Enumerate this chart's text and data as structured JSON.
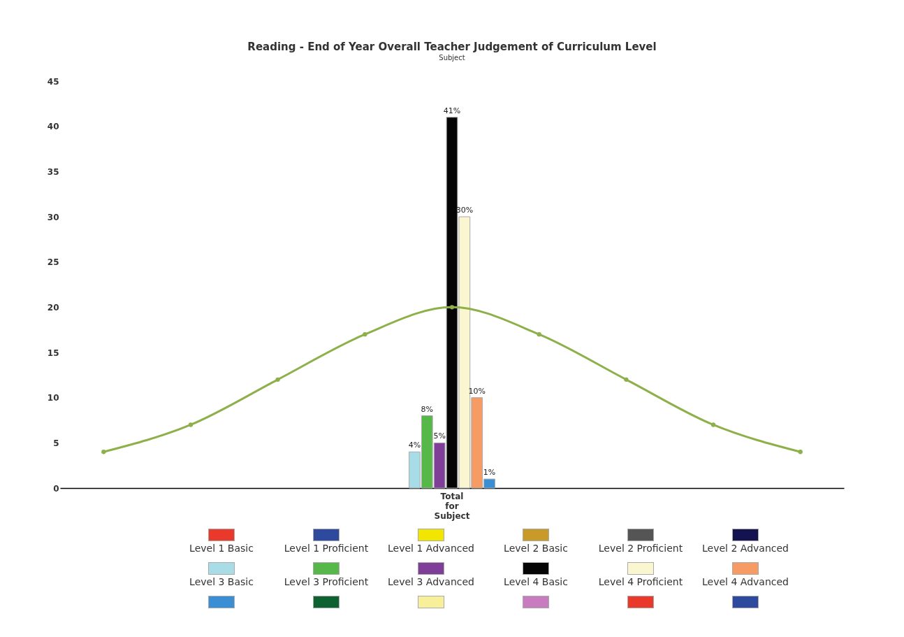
{
  "chart_data": {
    "type": "bar",
    "title": "Reading - End of Year Overall Teacher Judgement of Curriculum Level",
    "subtitle": "Subject",
    "categories": [
      null,
      null,
      null,
      null,
      "Total for Subject",
      null,
      null,
      null,
      null
    ],
    "ylim": [
      0,
      45
    ],
    "yticks": [
      0,
      5,
      10,
      15,
      20,
      25,
      30,
      35,
      40,
      45
    ],
    "grid": false,
    "legend": "bottom",
    "series": [
      {
        "name": "Level 1 Basic",
        "color": "#e8392b",
        "values": [
          null,
          null,
          null,
          null,
          null,
          null,
          null,
          null,
          null
        ]
      },
      {
        "name": "Level 1 Proficient",
        "color": "#2e4a9e",
        "values": [
          null,
          null,
          null,
          null,
          null,
          null,
          null,
          null,
          null
        ]
      },
      {
        "name": "Level 1 Advanced",
        "color": "#f2e600",
        "values": [
          null,
          null,
          null,
          null,
          null,
          null,
          null,
          null,
          null
        ]
      },
      {
        "name": "Level 2 Basic",
        "color": "#c9992a",
        "values": [
          null,
          null,
          null,
          null,
          null,
          null,
          null,
          null,
          null
        ]
      },
      {
        "name": "Level 2 Proficient",
        "color": "#555555",
        "values": [
          null,
          null,
          null,
          null,
          null,
          null,
          null,
          null,
          null
        ]
      },
      {
        "name": "Level 2 Advanced",
        "color": "#14134f",
        "values": [
          null,
          null,
          null,
          null,
          null,
          null,
          null,
          null,
          null
        ]
      },
      {
        "name": "Level 3 Basic",
        "color": "#a8dde8",
        "values": [
          null,
          null,
          null,
          null,
          4,
          null,
          null,
          null,
          null
        ],
        "value_labels": [
          null,
          null,
          null,
          null,
          "4%",
          null,
          null,
          null,
          null
        ]
      },
      {
        "name": "Level 3 Proficient",
        "color": "#55b848",
        "values": [
          null,
          null,
          null,
          null,
          8,
          null,
          null,
          null,
          null
        ],
        "value_labels": [
          null,
          null,
          null,
          null,
          "8%",
          null,
          null,
          null,
          null
        ]
      },
      {
        "name": "Level 3 Advanced",
        "color": "#7f3f98",
        "values": [
          null,
          null,
          null,
          null,
          5,
          null,
          null,
          null,
          null
        ],
        "value_labels": [
          null,
          null,
          null,
          null,
          "5%",
          null,
          null,
          null,
          null
        ]
      },
      {
        "name": "Level 4 Basic",
        "color": "#050505",
        "values": [
          null,
          null,
          null,
          null,
          41,
          null,
          null,
          null,
          null
        ],
        "value_labels": [
          null,
          null,
          null,
          null,
          "41%",
          null,
          null,
          null,
          null
        ]
      },
      {
        "name": "Level 4 Proficient",
        "color": "#faf7d0",
        "values": [
          null,
          null,
          null,
          null,
          30,
          null,
          null,
          null,
          null
        ],
        "value_labels": [
          null,
          null,
          null,
          null,
          "30%",
          null,
          null,
          null,
          null
        ]
      },
      {
        "name": "Level 4 Advanced",
        "color": "#f59b63",
        "values": [
          null,
          null,
          null,
          null,
          10,
          null,
          null,
          null,
          null
        ],
        "value_labels": [
          null,
          null,
          null,
          null,
          "10%",
          null,
          null,
          null,
          null
        ]
      },
      {
        "color": "#3a8fd4",
        "values": [
          null,
          null,
          null,
          null,
          1,
          null,
          null,
          null,
          null
        ],
        "value_labels": [
          null,
          null,
          null,
          null,
          "1%",
          null,
          null,
          null,
          null
        ]
      },
      {
        "color": "#0e6232",
        "values": [
          null,
          null,
          null,
          null,
          null,
          null,
          null,
          null,
          null
        ]
      },
      {
        "color": "#f7ef9a",
        "values": [
          null,
          null,
          null,
          null,
          null,
          null,
          null,
          null,
          null
        ]
      },
      {
        "color": "#c97bc0",
        "values": [
          null,
          null,
          null,
          null,
          null,
          null,
          null,
          null,
          null
        ]
      },
      {
        "color": "#e8392b",
        "values": [
          null,
          null,
          null,
          null,
          null,
          null,
          null,
          null,
          null
        ]
      },
      {
        "color": "#2e4a9e",
        "values": [
          null,
          null,
          null,
          null,
          null,
          null,
          null,
          null,
          null
        ]
      },
      {
        "type": "line",
        "color": "#8db04a",
        "marker": "circle",
        "values": [
          4,
          7,
          12,
          17,
          20,
          17,
          12,
          7,
          4
        ]
      }
    ]
  }
}
